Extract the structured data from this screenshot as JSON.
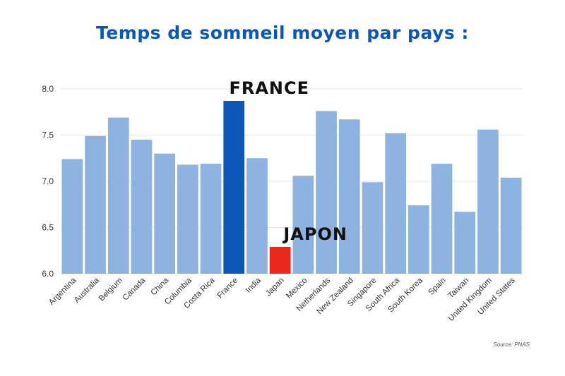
{
  "chart_data": {
    "type": "bar",
    "title": "Temps de sommeil moyen par pays :",
    "xlabel": "",
    "ylabel": "",
    "ylim": [
      6.0,
      8.0
    ],
    "yticks": [
      "6.0",
      "6.5",
      "7.0",
      "7.5",
      "8.0"
    ],
    "grid": true,
    "categories": [
      "Argentina",
      "Australia",
      "Belgium",
      "Canada",
      "China",
      "Columbia",
      "Costa Rica",
      "France",
      "India",
      "Japan",
      "Mexico",
      "Netherlands",
      "New Zealand",
      "Singapore",
      "South Africa",
      "South Korea",
      "Spain",
      "Taiwan",
      "United Kingdom",
      "United States"
    ],
    "values": [
      7.24,
      7.49,
      7.69,
      7.45,
      7.3,
      7.18,
      7.19,
      7.87,
      7.25,
      6.29,
      7.06,
      7.76,
      7.67,
      6.99,
      7.52,
      6.74,
      7.19,
      6.67,
      7.56,
      7.04
    ],
    "annotations": [
      {
        "category": "France",
        "text": "FRANCE"
      },
      {
        "category": "Japan",
        "text": "JAPON"
      }
    ],
    "source": "Source: PNAS"
  },
  "colors": {
    "default_bar": "#8fb3e0",
    "highlight_france": "#0b57b8",
    "highlight_japan": "#e8291c",
    "title": "#0b57b8",
    "grid": "#e6e6e6"
  }
}
